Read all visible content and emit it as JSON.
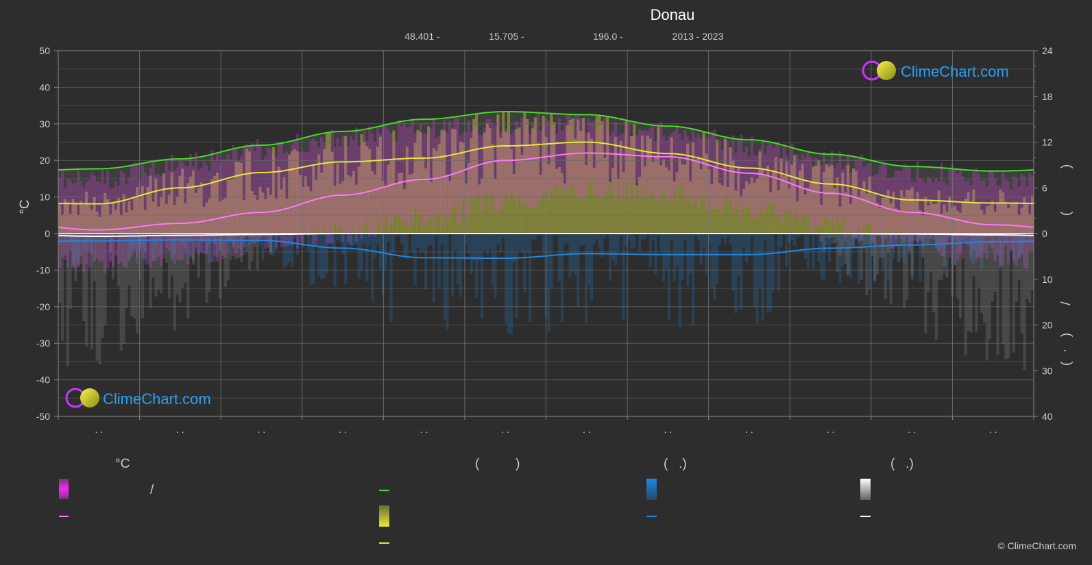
{
  "header": {
    "title": "Donau",
    "latitude": "48.401 -",
    "longitude": "15.705 -",
    "elevation": "196.0 -",
    "years": "2013 - 2023"
  },
  "branding": {
    "logo_text": "ClimeChart.com",
    "copyright": "© ClimeChart.com"
  },
  "colors": {
    "background": "#2d2d2d",
    "sunshine": "#e8e83a",
    "daylight": "#44dd22",
    "temp_band": "#e040e0",
    "temp_mean": "#ff77ff",
    "precip": "#1e88e5",
    "snow": "#cccccc",
    "grid": "#666666",
    "logo_blue": "#2a9ff0"
  },
  "legend": {
    "temp_heading": "°C",
    "sun_heading": "(          )",
    "rain_heading": "(   .)",
    "snow_heading": "(   .)",
    "temp_slash": "/",
    "icons": [
      "temp-range-swatch",
      "temp-mean-line",
      "daylight-line",
      "sunshine-swatch",
      "sunshine-mean-line",
      "rain-swatch",
      "rain-mean-line",
      "snow-swatch",
      "snow-mean-line"
    ]
  },
  "chart_data": {
    "type": "line",
    "y_left": {
      "label": "°C",
      "range": [
        -50,
        50
      ],
      "ticks": [
        50,
        40,
        30,
        20,
        10,
        0,
        -10,
        -20,
        -30,
        -40,
        -50
      ]
    },
    "y_right_top": {
      "range": [
        0,
        24
      ],
      "ticks": [
        24,
        18,
        12,
        6,
        0
      ]
    },
    "y_right_bottom": {
      "range": [
        0,
        40
      ],
      "ticks": [
        10,
        20,
        30,
        40
      ]
    },
    "right_axis_label_glyphs": [
      ")",
      "(",
      "/",
      ")",
      "(",
      "·",
      ")"
    ],
    "x_tick_label": ". .",
    "grid": true,
    "months": 12,
    "series": [
      {
        "key": "daylight",
        "y_axis": "right_top",
        "values": [
          8.5,
          9.8,
          11.6,
          13.4,
          15.0,
          16.0,
          15.6,
          14.1,
          12.3,
          10.4,
          8.8,
          8.2
        ]
      },
      {
        "key": "sunshine_mean",
        "y_axis": "right_top",
        "values": [
          3.9,
          6.0,
          8.0,
          9.4,
          9.9,
          11.5,
          12.0,
          10.5,
          8.6,
          6.5,
          4.4,
          4.0
        ]
      },
      {
        "key": "temp_mean",
        "y_axis": "left",
        "values": [
          1.0,
          2.8,
          5.8,
          10.5,
          14.8,
          20.0,
          22.0,
          21.0,
          16.5,
          11.0,
          5.8,
          2.4
        ]
      },
      {
        "key": "temp_max_band",
        "y_axis": "left",
        "values": [
          15,
          19,
          23,
          26,
          29,
          30,
          30,
          28,
          24,
          20,
          17,
          15
        ]
      },
      {
        "key": "temp_min_band",
        "y_axis": "left",
        "values": [
          -8,
          -6,
          -3,
          0,
          4,
          9,
          12,
          11,
          7,
          2,
          -2,
          -6
        ]
      },
      {
        "key": "precip_mean",
        "y_axis": "right_bottom",
        "values": [
          1.6,
          1.4,
          1.5,
          3.2,
          5.3,
          5.4,
          4.4,
          4.6,
          4.6,
          3.2,
          2.5,
          1.8
        ]
      },
      {
        "key": "snow_mean",
        "y_axis": "right_bottom",
        "values": [
          0.6,
          0.4,
          0.2,
          0,
          0,
          0,
          0,
          0,
          0,
          0,
          0.1,
          0.3
        ]
      }
    ]
  }
}
